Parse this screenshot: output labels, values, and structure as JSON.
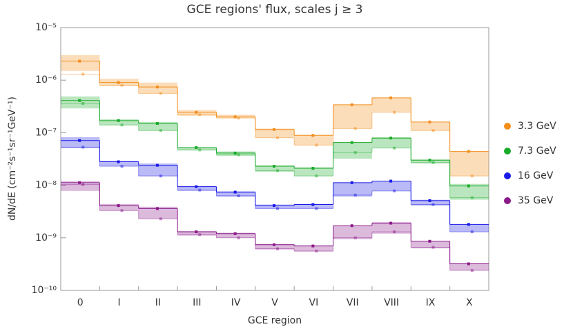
{
  "chart_data": {
    "type": "step",
    "title": "GCE regions' flux, scales j ≥ 3",
    "xlabel": "GCE region",
    "ylabel": "dN/dE (cm⁻²s⁻¹sr⁻¹GeV⁻¹)",
    "categories": [
      "0",
      "I",
      "II",
      "III",
      "IV",
      "V",
      "VI",
      "VII",
      "VIII",
      "IX",
      "X"
    ],
    "log_scale": true,
    "ylim": [
      1e-10,
      1e-05
    ],
    "yticks": [
      {
        "value": 1e-10,
        "label": "10⁻¹⁰"
      },
      {
        "value": 1e-09,
        "label": "10⁻⁹"
      },
      {
        "value": 1e-08,
        "label": "10⁻⁸"
      },
      {
        "value": 1e-07,
        "label": "10⁻⁷"
      },
      {
        "value": 1e-06,
        "label": "10⁻⁶"
      },
      {
        "value": 1e-05,
        "label": "10⁻⁵"
      }
    ],
    "legend": "right",
    "series": [
      {
        "name": "3.3 GeV",
        "color": "#f28e1c",
        "values": [
          2.3e-06,
          9e-07,
          7.4e-07,
          2.45e-07,
          2e-07,
          1.15e-07,
          8.9e-08,
          3.4e-07,
          4.6e-07,
          1.6e-07,
          4.4e-08
        ],
        "lower": [
          1.5e-06,
          7.7e-07,
          5.6e-07,
          2.1e-07,
          1.9e-07,
          8e-08,
          5.8e-08,
          1.2e-07,
          2.45e-07,
          1.1e-07,
          1.5e-08
        ],
        "upper": [
          3e-06,
          1.06e-06,
          9e-07,
          2.7e-07,
          2.2e-07,
          1.2e-07,
          9.1e-08,
          3.4e-07,
          4.6e-07,
          1.6e-07,
          4.4e-08
        ],
        "alt_values": [
          1.3e-06,
          8e-07,
          5.6e-07,
          2.2e-07,
          1.9e-07,
          8e-08,
          5.8e-08,
          1.2e-07,
          2.45e-07,
          1.1e-07,
          1.5e-08
        ]
      },
      {
        "name": "7.3 GeV",
        "color": "#1aab2a",
        "values": [
          4.1e-07,
          1.7e-07,
          1.5e-07,
          5.2e-08,
          4.1e-08,
          2.3e-08,
          2.1e-08,
          6.5e-08,
          7.9e-08,
          3e-08,
          9.7e-09
        ],
        "lower": [
          2.9e-07,
          1.4e-07,
          1.1e-07,
          4.6e-08,
          3.6e-08,
          1.8e-08,
          1.5e-08,
          3.2e-08,
          5.1e-08,
          2.6e-08,
          5.3e-09
        ],
        "upper": [
          4.9e-07,
          1.8e-07,
          1.6e-07,
          5.3e-08,
          4.4e-08,
          2.4e-08,
          2.2e-08,
          6.5e-08,
          8.2e-08,
          3.1e-08,
          1.06e-08
        ],
        "alt_values": [
          3.6e-07,
          1.4e-07,
          1.1e-07,
          4.7e-08,
          3.8e-08,
          1.9e-08,
          1.5e-08,
          4.2e-08,
          5.1e-08,
          2.7e-08,
          5.8e-09
        ]
      },
      {
        "name": "16 GeV",
        "color": "#1a1ae6",
        "values": [
          7.1e-08,
          2.8e-08,
          2.4e-08,
          9.4e-09,
          7.4e-09,
          4.1e-09,
          4.3e-09,
          1.12e-08,
          1.2e-08,
          5.1e-09,
          1.8e-09
        ],
        "lower": [
          5.1e-08,
          2.3e-08,
          1.5e-08,
          7.8e-09,
          6.1e-09,
          3.6e-09,
          3.6e-09,
          6.1e-09,
          7.8e-09,
          4.1e-09,
          1.3e-09
        ],
        "upper": [
          8.2e-08,
          2.9e-08,
          2.6e-08,
          9.7e-09,
          7.7e-09,
          4.3e-09,
          4.4e-09,
          1.12e-08,
          1.2e-08,
          5.3e-09,
          1.8e-09
        ],
        "alt_values": [
          5.3e-08,
          2.3e-08,
          1.5e-08,
          8.1e-09,
          6.3e-09,
          3.6e-09,
          3.6e-09,
          6.5e-09,
          7.8e-09,
          4.3e-09,
          1.3e-09
        ]
      },
      {
        "name": "35 GeV",
        "color": "#8a1a8a",
        "values": [
          1.12e-08,
          4.1e-09,
          3.6e-09,
          1.3e-09,
          1.2e-09,
          7.4e-10,
          7e-10,
          1.7e-09,
          1.9e-09,
          8.6e-10,
          3.2e-10
        ],
        "lower": [
          7.8e-09,
          3.3e-09,
          2.3e-09,
          1.1e-09,
          1e-09,
          6e-10,
          5.5e-10,
          9.4e-10,
          1.2e-09,
          6.3e-10,
          2.4e-10
        ],
        "upper": [
          1.2e-08,
          4.4e-09,
          3.9e-09,
          1.35e-09,
          1.25e-09,
          7.6e-10,
          7.2e-10,
          1.7e-09,
          2e-09,
          8.6e-10,
          3.3e-10
        ],
        "alt_values": [
          1.03e-08,
          3.3e-09,
          2.3e-09,
          1.15e-09,
          1e-09,
          6.2e-10,
          5.6e-10,
          1e-09,
          1.3e-09,
          6.6e-10,
          2.4e-10
        ]
      }
    ]
  }
}
